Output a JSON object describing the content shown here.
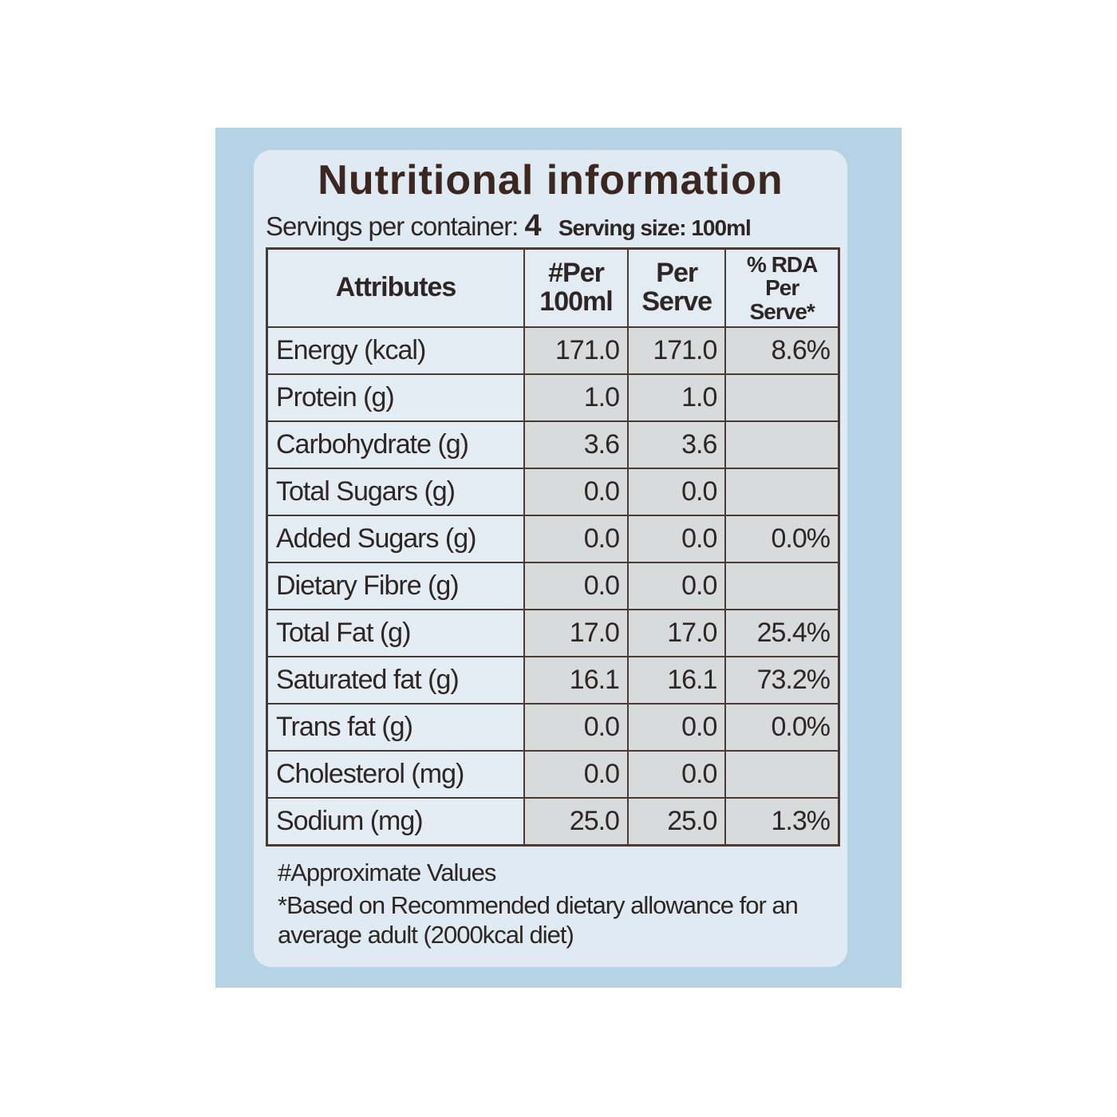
{
  "label": {
    "title": "Nutritional information",
    "servings": {
      "label": "Servings per container:",
      "count": "4",
      "size": "Serving size: 100ml"
    },
    "table": {
      "header": [
        "Attributes",
        "#Per 100ml",
        "Per Serve",
        "% RDA Per Serve*"
      ],
      "rows": [
        [
          "Energy (kcal)",
          "171.0",
          "171.0",
          "8.6%"
        ],
        [
          "Protein (g)",
          "1.0",
          "1.0",
          null
        ],
        [
          "Carbohydrate (g)",
          "3.6",
          "3.6",
          null
        ],
        [
          "Total Sugars (g)",
          "0.0",
          "0.0",
          null
        ],
        [
          "Added Sugars (g)",
          "0.0",
          "0.0",
          "0.0%"
        ],
        [
          "Dietary Fibre (g)",
          "0.0",
          "0.0",
          null
        ],
        [
          "Total Fat (g)",
          "17.0",
          "17.0",
          "25.4%"
        ],
        [
          "Saturated fat (g)",
          "16.1",
          "16.1",
          "73.2%"
        ],
        [
          "Trans fat (g)",
          "0.0",
          "0.0",
          "0.0%"
        ],
        [
          "Cholesterol (mg)",
          "0.0",
          "0.0",
          null
        ],
        [
          "Sodium (mg)",
          "25.0",
          "25.0",
          "1.3%"
        ]
      ]
    },
    "footnotes": [
      "#Approximate Values",
      "*Based on Recommended dietary allowance for an average adult (2000kcal diet)"
    ]
  }
}
